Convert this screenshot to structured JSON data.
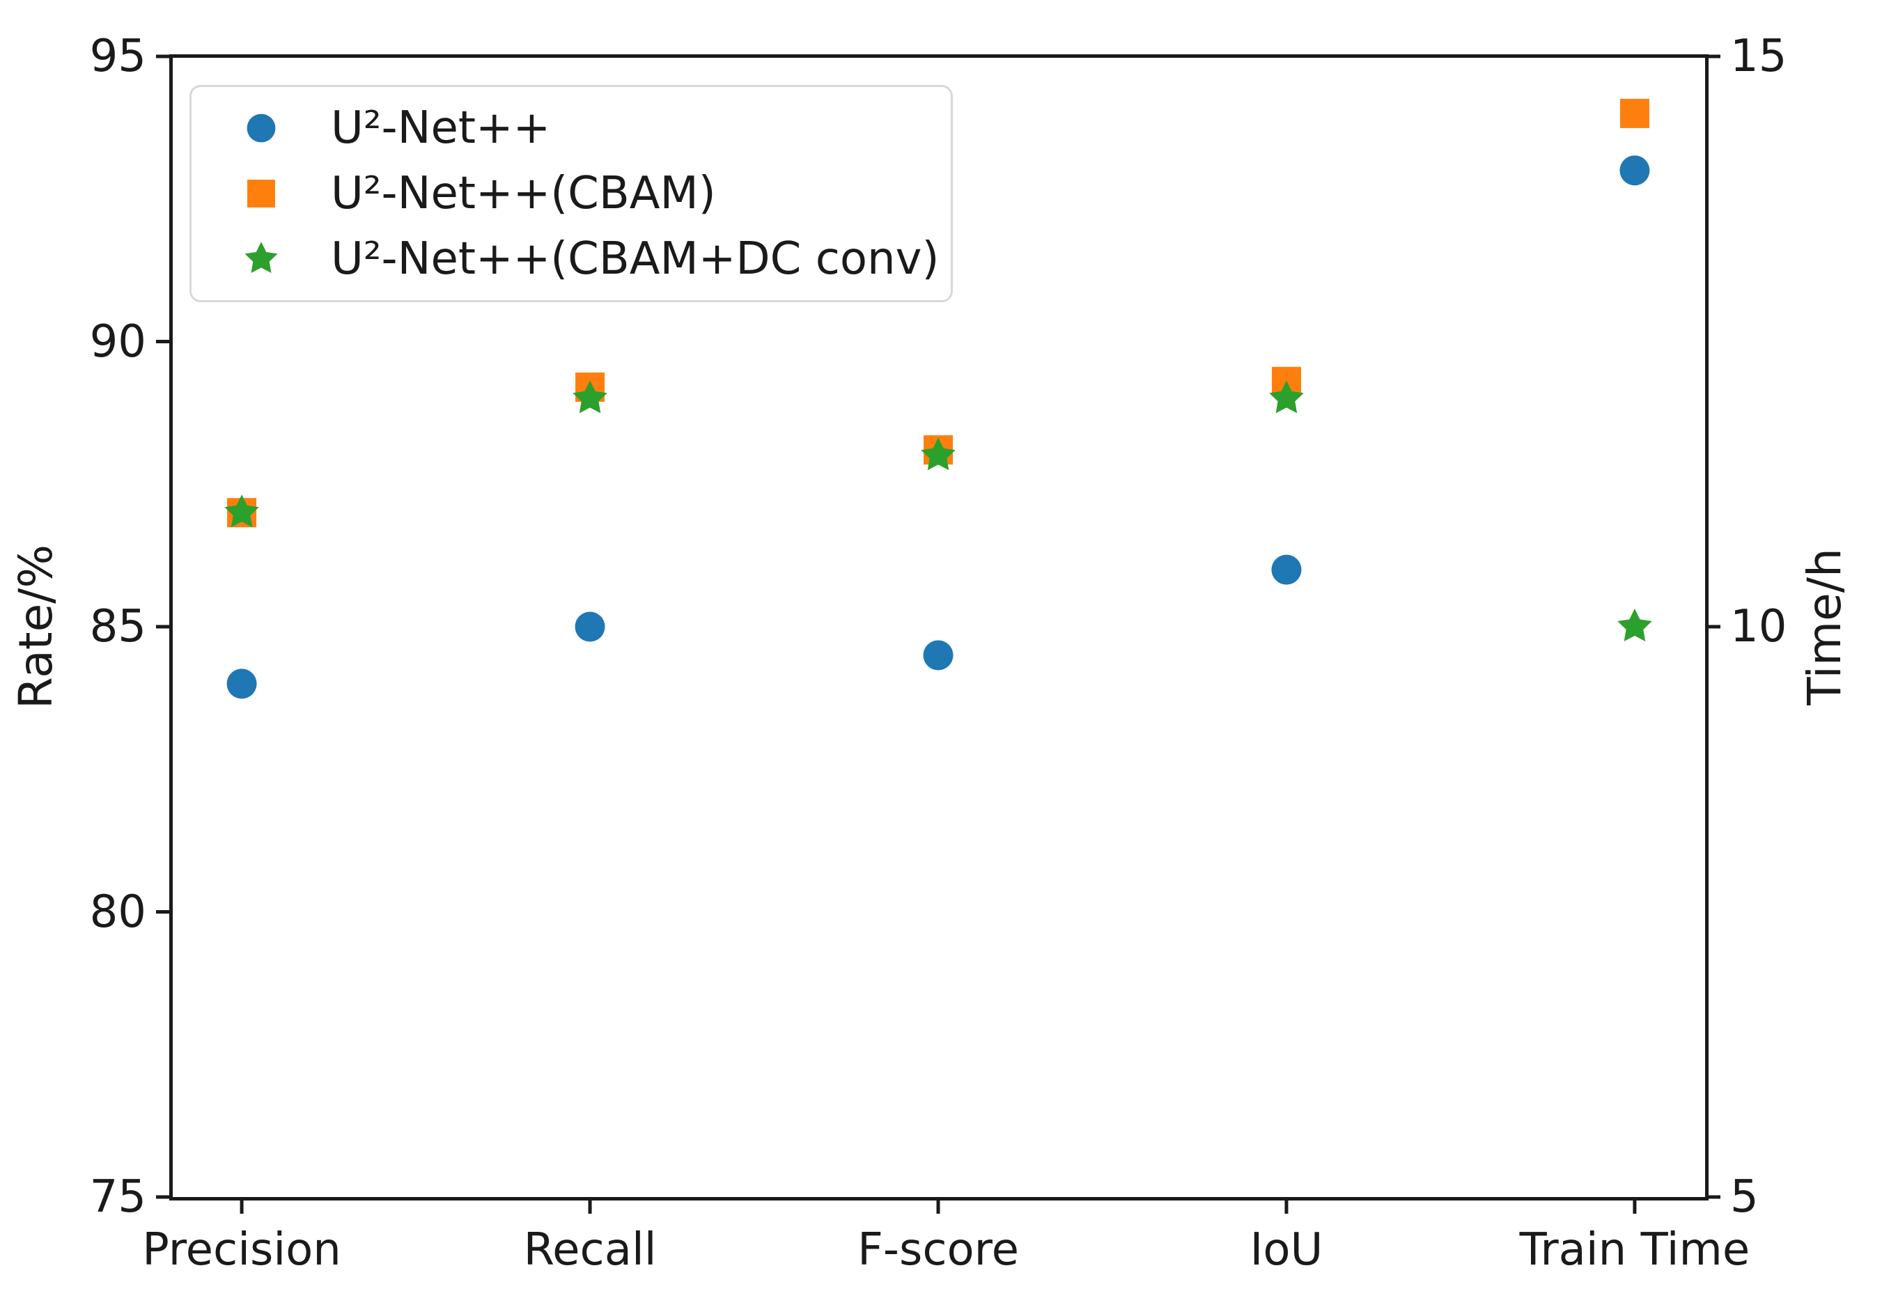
{
  "figure": {
    "background": "#ffffff",
    "text_color": "#1a1a1a",
    "spine_color": "#1a1a1a"
  },
  "chart_data": {
    "type": "scatter",
    "categories": [
      "Precision",
      "Recall",
      "F-score",
      "IoU",
      "Train Time"
    ],
    "left_axis": {
      "label": "Rate/%",
      "min": 75,
      "max": 95,
      "ticks": [
        95,
        90,
        85,
        80,
        75
      ]
    },
    "right_axis": {
      "label": "Time/h",
      "min": 5,
      "max": 15,
      "ticks": [
        15,
        10,
        5
      ]
    },
    "grid": false,
    "legend_position": "upper-left",
    "series": [
      {
        "name": "U²-Net++",
        "marker": "circle",
        "color": "#1f77b4",
        "rate_values": [
          84.0,
          85.0,
          84.5,
          86.0
        ],
        "train_time_h": 14.0
      },
      {
        "name": "U²-Net++(CBAM)",
        "marker": "square",
        "color": "#ff7f0e",
        "rate_values": [
          87.0,
          89.2,
          88.1,
          89.3
        ],
        "train_time_h": 14.5
      },
      {
        "name": "U²-Net++(CBAM+DC conv)",
        "marker": "star",
        "color": "#2ca02c",
        "rate_values": [
          87.0,
          89.0,
          88.0,
          89.0
        ],
        "train_time_h": 10.0
      }
    ]
  }
}
